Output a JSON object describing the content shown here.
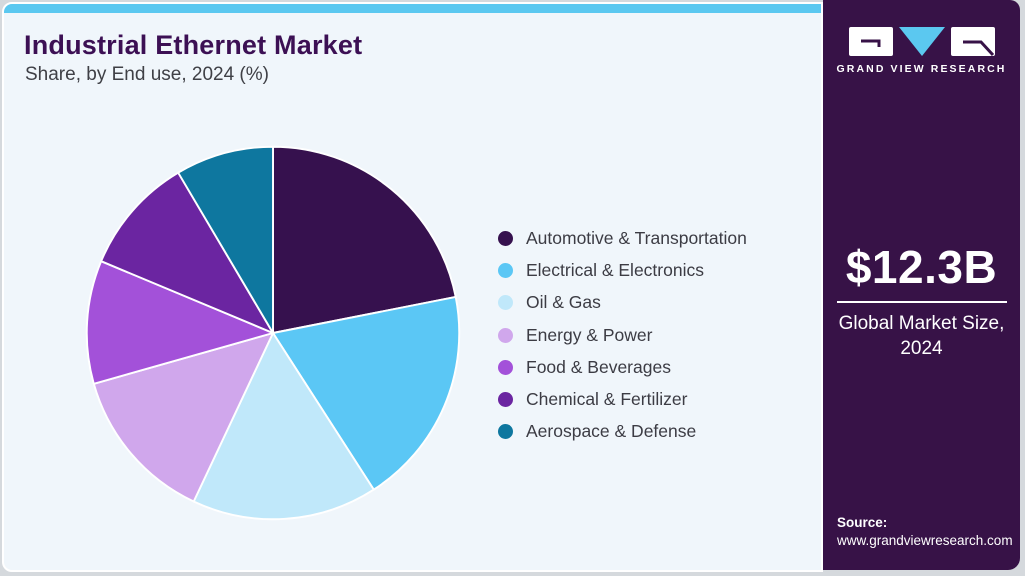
{
  "header": {
    "title": "Industrial Ethernet Market",
    "subtitle": "Share, by End use, 2024 (%)"
  },
  "chart_data": {
    "type": "pie",
    "title": "Industrial Ethernet Market Share, by End use, 2024 (%)",
    "unit": "percent",
    "start_angle_deg": 0,
    "direction": "clockwise",
    "legend_position": "right",
    "labels_shown": false,
    "categories": [
      "Automotive & Transportation",
      "Electrical & Electronics",
      "Oil & Gas",
      "Energy & Power",
      "Food & Beverages",
      "Chemical & Fertilizer",
      "Aerospace & Defense"
    ],
    "values": [
      21.9,
      19.0,
      16.1,
      13.6,
      10.7,
      10.2,
      8.5
    ],
    "colors": [
      "#36114e",
      "#5bc7f5",
      "#c0e8fa",
      "#d0a7ec",
      "#a351d9",
      "#6b25a1",
      "#0e779f"
    ],
    "slice_border_color": "#ffffff"
  },
  "sidebar": {
    "brand_name": "GRAND VIEW RESEARCH",
    "market_size": "$12.3B",
    "market_size_caption": "Global Market Size, 2024",
    "source_label": "Source:",
    "source_url": "www.grandviewresearch.com",
    "background_color": "#371247",
    "accent_color": "#5bc8f0"
  },
  "theme": {
    "card_background": "#f0f6fb",
    "top_bar_color": "#5bc8f0",
    "title_color": "#3c1054",
    "subtitle_color": "#3f4046",
    "legend_text_color": "#3c3c44"
  }
}
